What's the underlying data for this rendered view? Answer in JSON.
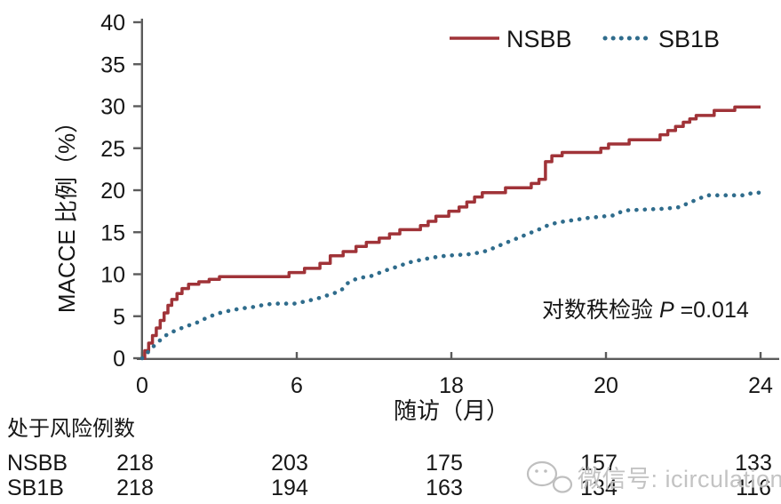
{
  "figure": {
    "y_axis_label": "MACCE 比例（%）",
    "x_axis_label": "随访（月）",
    "legend": {
      "nsbb": "NSBB",
      "sb1b": "SB1B"
    },
    "annotation": {
      "prefix": "对数秩检验 ",
      "p": "P",
      "rest": " =0.014"
    },
    "watermark": "微信号: icirculation",
    "colors": {
      "nsbb": "#a03338",
      "sb1b": "#2f6c8c",
      "axis": "#5b5b5b",
      "watermark": "#bdbdbd"
    }
  },
  "chart_data": {
    "type": "line",
    "title": "",
    "xlabel": "随访（月）",
    "ylabel": "MACCE 比例（%）",
    "xlim": [
      0,
      24
    ],
    "ylim": [
      0,
      40
    ],
    "grid": false,
    "legend_position": "top",
    "x_tick_labels": [
      "0",
      "6",
      "18",
      "20",
      "24"
    ],
    "y_ticks": [
      40,
      35,
      30,
      25,
      20,
      15,
      10,
      5,
      0
    ],
    "annotation": "对数秩检验 P =0.014",
    "series": [
      {
        "name": "NSBB",
        "style": "step-solid",
        "color": "#a03338",
        "points": [
          [
            0,
            0
          ],
          [
            0.1,
            0.9
          ],
          [
            0.25,
            1.8
          ],
          [
            0.4,
            2.7
          ],
          [
            0.55,
            3.6
          ],
          [
            0.7,
            4.5
          ],
          [
            0.85,
            5.4
          ],
          [
            1.0,
            6.3
          ],
          [
            1.15,
            7.0
          ],
          [
            1.35,
            7.7
          ],
          [
            1.55,
            8.3
          ],
          [
            1.8,
            8.8
          ],
          [
            2.2,
            9.1
          ],
          [
            2.6,
            9.4
          ],
          [
            3.0,
            9.7
          ],
          [
            5.7,
            10.2
          ],
          [
            6.3,
            10.7
          ],
          [
            6.9,
            11.3
          ],
          [
            7.3,
            12.2
          ],
          [
            7.8,
            12.7
          ],
          [
            8.3,
            13.3
          ],
          [
            8.7,
            13.8
          ],
          [
            9.2,
            14.3
          ],
          [
            9.6,
            14.8
          ],
          [
            10.0,
            15.3
          ],
          [
            10.8,
            15.8
          ],
          [
            11.1,
            16.3
          ],
          [
            11.4,
            16.9
          ],
          [
            11.9,
            17.5
          ],
          [
            12.3,
            18.0
          ],
          [
            12.6,
            18.6
          ],
          [
            12.9,
            19.2
          ],
          [
            13.2,
            19.7
          ],
          [
            14.1,
            20.3
          ],
          [
            15.1,
            20.8
          ],
          [
            15.4,
            21.3
          ],
          [
            15.65,
            23.4
          ],
          [
            15.9,
            24.1
          ],
          [
            16.3,
            24.5
          ],
          [
            17.8,
            25.0
          ],
          [
            18.1,
            25.5
          ],
          [
            18.9,
            26.0
          ],
          [
            20.1,
            26.6
          ],
          [
            20.4,
            27.1
          ],
          [
            20.7,
            27.6
          ],
          [
            21.0,
            28.1
          ],
          [
            21.25,
            28.5
          ],
          [
            21.5,
            28.9
          ],
          [
            22.2,
            29.5
          ],
          [
            23.0,
            29.9
          ],
          [
            24,
            29.9
          ]
        ]
      },
      {
        "name": "SB1B",
        "style": "dotted",
        "color": "#2f6c8c",
        "points": [
          [
            0,
            0
          ],
          [
            0.25,
            0.8
          ],
          [
            0.5,
            1.6
          ],
          [
            0.75,
            2.3
          ],
          [
            1.0,
            2.9
          ],
          [
            1.3,
            3.3
          ],
          [
            1.7,
            3.8
          ],
          [
            2.1,
            4.2
          ],
          [
            2.5,
            4.8
          ],
          [
            2.9,
            5.3
          ],
          [
            3.3,
            5.6
          ],
          [
            3.8,
            5.9
          ],
          [
            4.3,
            6.1
          ],
          [
            4.8,
            6.4
          ],
          [
            5.2,
            6.5
          ],
          [
            5.9,
            6.5
          ],
          [
            6.4,
            6.8
          ],
          [
            6.9,
            7.2
          ],
          [
            7.3,
            7.6
          ],
          [
            7.7,
            8.0
          ],
          [
            8.0,
            9.0
          ],
          [
            8.35,
            9.5
          ],
          [
            8.9,
            9.8
          ],
          [
            9.4,
            10.4
          ],
          [
            9.9,
            10.9
          ],
          [
            10.35,
            11.4
          ],
          [
            10.8,
            11.7
          ],
          [
            11.3,
            12.0
          ],
          [
            11.8,
            12.2
          ],
          [
            12.8,
            12.4
          ],
          [
            13.4,
            12.8
          ],
          [
            13.85,
            13.4
          ],
          [
            14.25,
            13.9
          ],
          [
            14.65,
            14.4
          ],
          [
            15.05,
            14.9
          ],
          [
            15.45,
            15.4
          ],
          [
            15.8,
            15.9
          ],
          [
            16.2,
            16.2
          ],
          [
            17.3,
            16.7
          ],
          [
            18.3,
            17.0
          ],
          [
            18.7,
            17.6
          ],
          [
            20.3,
            17.8
          ],
          [
            20.9,
            18.0
          ],
          [
            21.2,
            18.5
          ],
          [
            21.55,
            18.9
          ],
          [
            21.9,
            19.4
          ],
          [
            23.4,
            19.4
          ],
          [
            23.7,
            19.7
          ],
          [
            24,
            19.7
          ]
        ]
      }
    ],
    "number_at_risk": {
      "title": "处于风险例数",
      "time_labels": [
        "0",
        "6",
        "18",
        "20",
        "24"
      ],
      "rows": [
        {
          "name": "NSBB",
          "values": [
            218,
            203,
            175,
            157,
            133
          ]
        },
        {
          "name": "SB1B",
          "values": [
            218,
            194,
            163,
            134,
            116
          ]
        }
      ]
    }
  }
}
